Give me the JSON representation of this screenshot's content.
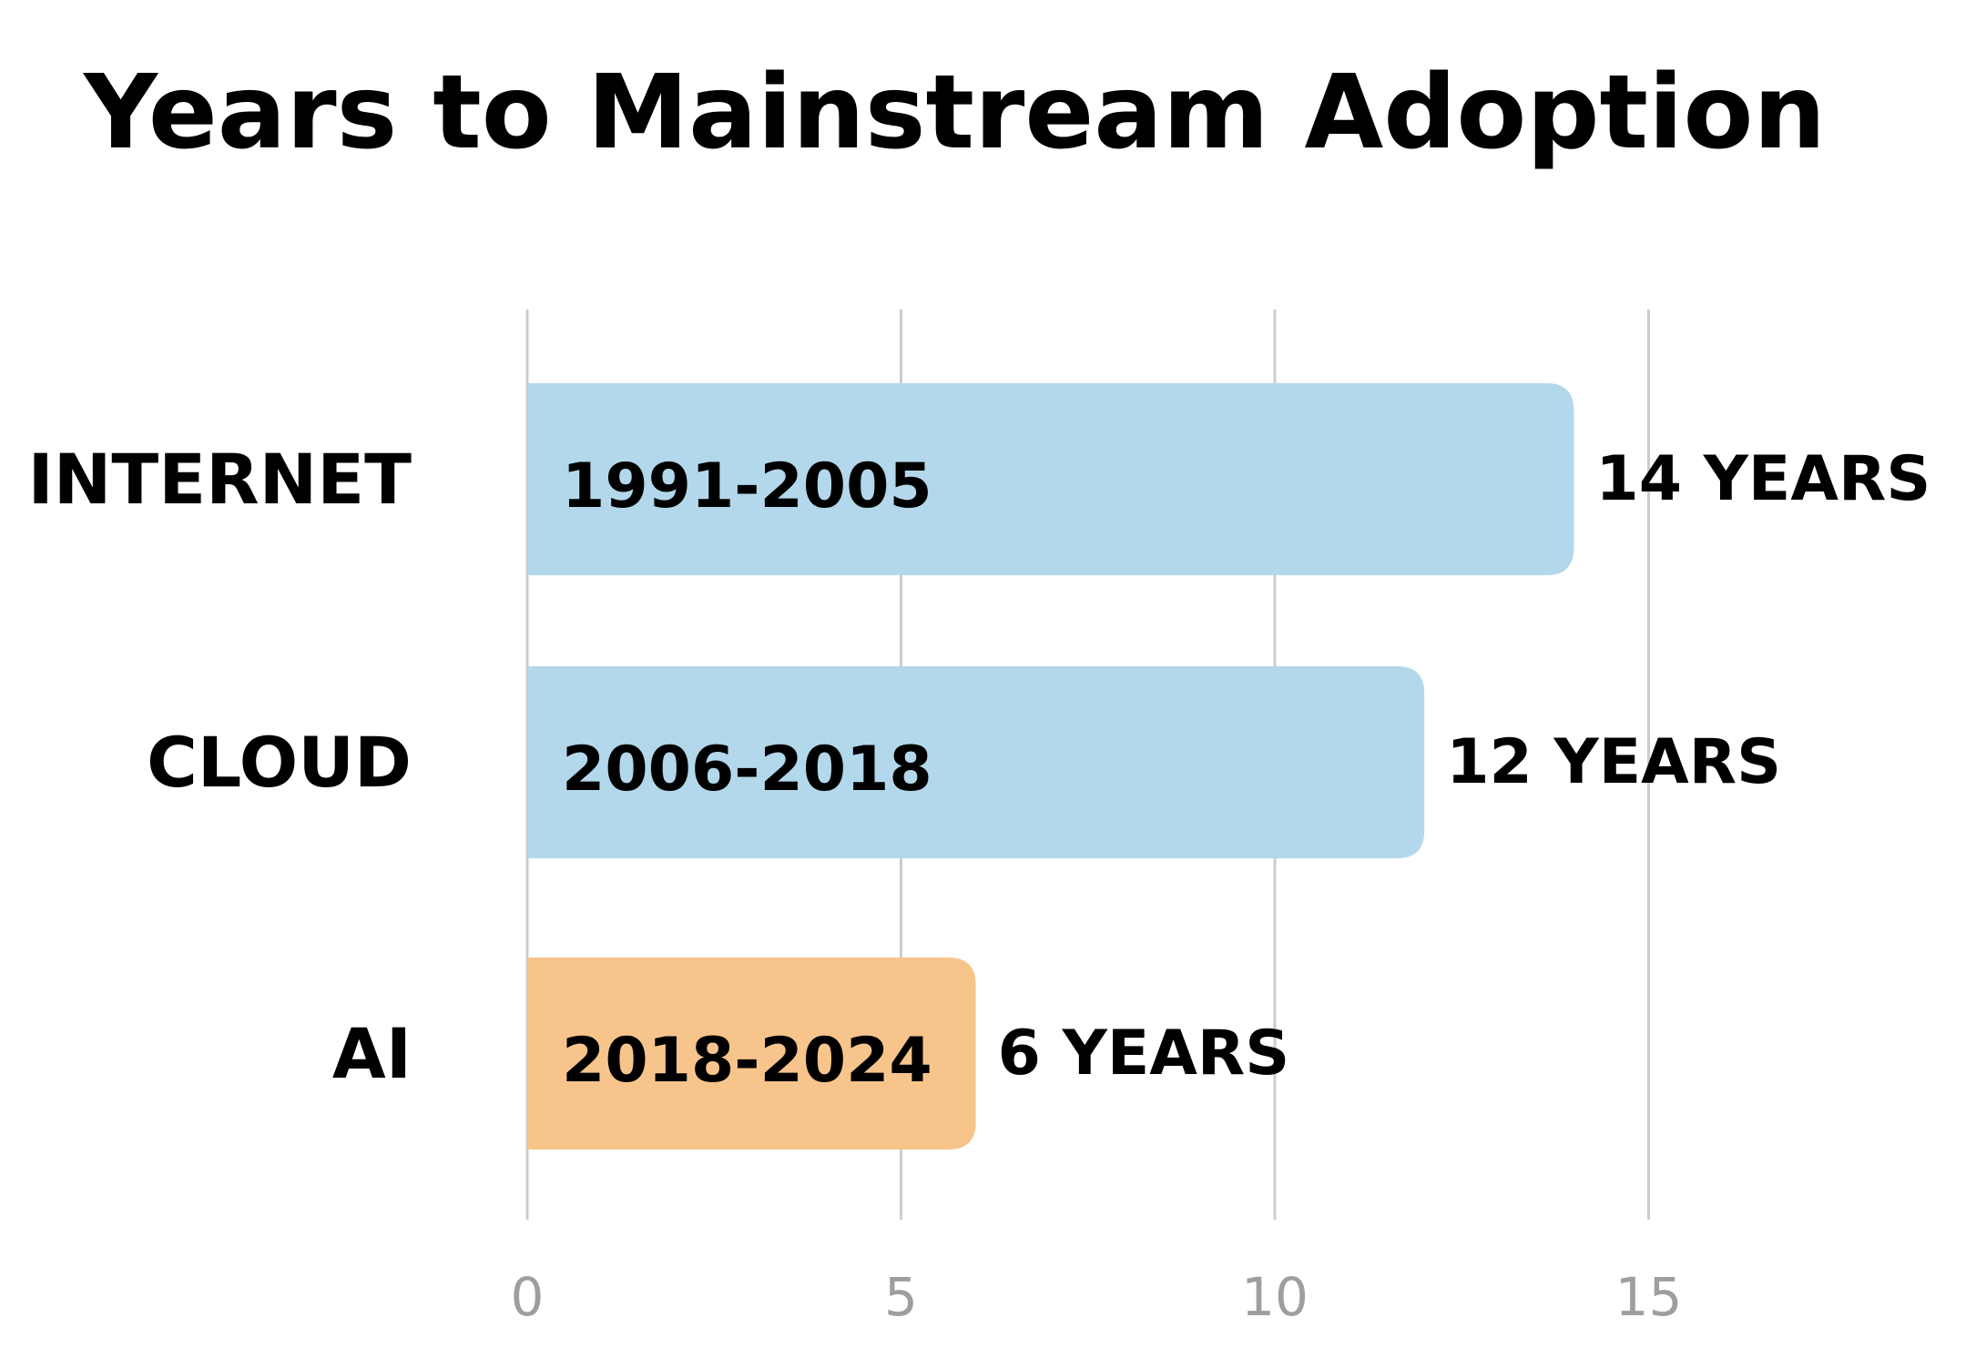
{
  "chart_data": {
    "type": "bar",
    "orientation": "horizontal",
    "title": "Years to Mainstream Adoption",
    "categories": [
      "INTERNET",
      "CLOUD",
      "AI"
    ],
    "values": [
      14,
      12,
      6
    ],
    "ranges": [
      "1991-2005",
      "2006-2018",
      "2018-2024"
    ],
    "value_labels": [
      "14 YEARS",
      "12 YEARS",
      "6 YEARS"
    ],
    "bar_colors": [
      "#b3d8eb",
      "#b3d8eb",
      "#f7c58c"
    ],
    "xlim": [
      0,
      15
    ],
    "xticks": [
      0,
      5,
      10,
      15
    ],
    "tick_labels": [
      "0",
      "5",
      "10",
      "15"
    ],
    "grid": true,
    "xlabel": "",
    "ylabel": ""
  }
}
